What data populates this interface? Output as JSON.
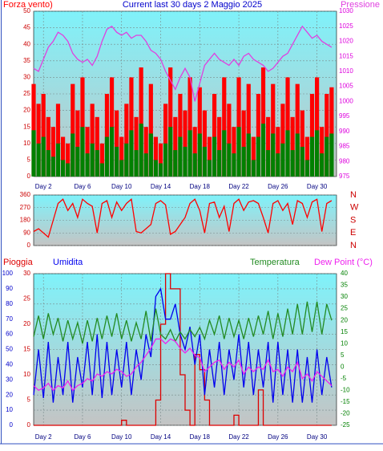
{
  "chart_data": [
    {
      "type": "bar-line",
      "title": "Current last 30 days 2 Maggio 2025",
      "x": [
        1,
        1.5,
        2,
        2.5,
        3,
        3.5,
        4,
        4.5,
        5,
        5.5,
        6,
        6.5,
        7,
        7.5,
        8,
        8.5,
        9,
        9.5,
        10,
        10.5,
        11,
        11.5,
        12,
        12.5,
        13,
        13.5,
        14,
        14.5,
        15,
        15.5,
        16,
        16.5,
        17,
        17.5,
        18,
        18.5,
        19,
        19.5,
        20,
        20.5,
        21,
        21.5,
        22,
        22.5,
        23,
        23.5,
        24,
        24.5,
        25,
        25.5,
        26,
        26.5,
        27,
        27.5,
        28,
        28.5,
        29,
        29.5,
        30,
        30.5,
        31,
        31.5
      ],
      "xlim": [
        1,
        32
      ],
      "xticks": [
        {
          "value": 2,
          "label": "Day 2"
        },
        {
          "value": 6,
          "label": "Day 6"
        },
        {
          "value": 10,
          "label": "Day 10"
        },
        {
          "value": 14,
          "label": "Day 14"
        },
        {
          "value": 18,
          "label": "Day 18"
        },
        {
          "value": 22,
          "label": "Day 22"
        },
        {
          "value": 26,
          "label": "Day 26"
        },
        {
          "value": 30,
          "label": "Day 30"
        }
      ],
      "ylim": [
        0,
        50
      ],
      "yticks": [
        0,
        5,
        10,
        15,
        20,
        25,
        30,
        35,
        40,
        45,
        50
      ],
      "y2lim": [
        975,
        1030
      ],
      "y2ticks": [
        975,
        980,
        985,
        990,
        995,
        1000,
        1005,
        1010,
        1015,
        1020,
        1025,
        1030
      ],
      "grid": true,
      "series": [
        {
          "name": "Forza vento)",
          "color": "#ff0000",
          "mark": "bar",
          "axis": "y",
          "values": [
            28,
            22,
            25,
            18,
            15,
            22,
            12,
            10,
            28,
            20,
            30,
            15,
            22,
            18,
            10,
            25,
            30,
            20,
            12,
            22,
            30,
            18,
            33,
            15,
            28,
            12,
            10,
            22,
            33,
            18,
            25,
            20,
            30,
            15,
            27,
            20,
            12,
            25,
            18,
            30,
            22,
            15,
            30,
            20,
            28,
            12,
            25,
            33,
            18,
            28,
            15,
            22,
            30,
            18,
            28,
            20,
            12,
            25,
            30,
            15,
            25,
            27
          ]
        },
        {
          "color": "#008000",
          "mark": "bar",
          "axis": "y",
          "values": [
            14,
            10,
            12,
            8,
            6,
            10,
            5,
            4,
            13,
            9,
            15,
            7,
            10,
            8,
            4,
            12,
            15,
            9,
            5,
            10,
            14,
            8,
            16,
            7,
            13,
            5,
            4,
            10,
            15,
            8,
            12,
            9,
            14,
            7,
            13,
            9,
            5,
            12,
            8,
            14,
            10,
            7,
            15,
            9,
            13,
            5,
            12,
            16,
            8,
            13,
            7,
            10,
            14,
            8,
            13,
            9,
            5,
            12,
            14,
            7,
            12,
            13
          ]
        },
        {
          "name": "Pressione",
          "color": "#e040e0",
          "mark": "line",
          "axis": "y2",
          "values": [
            1011,
            1010,
            1014,
            1018,
            1020,
            1023,
            1022,
            1020,
            1016,
            1014,
            1013,
            1014,
            1012,
            1015,
            1020,
            1024,
            1025,
            1023,
            1022,
            1023,
            1021,
            1022,
            1022,
            1020,
            1017,
            1016,
            1014,
            1010,
            1007,
            1004,
            1008,
            1011,
            1008,
            1000,
            1006,
            1012,
            1014,
            1016,
            1014,
            1013,
            1012,
            1014,
            1012,
            1015,
            1016,
            1014,
            1013,
            1012,
            1010,
            1011,
            1013,
            1015,
            1016,
            1019,
            1022,
            1025,
            1023,
            1021,
            1022,
            1020,
            1019,
            1018
          ]
        }
      ]
    },
    {
      "type": "line",
      "x": [
        1,
        1.5,
        2,
        2.5,
        3,
        3.5,
        4,
        4.5,
        5,
        5.5,
        6,
        6.5,
        7,
        7.5,
        8,
        8.5,
        9,
        9.5,
        10,
        10.5,
        11,
        11.5,
        12,
        12.5,
        13,
        13.5,
        14,
        14.5,
        15,
        15.5,
        16,
        16.5,
        17,
        17.5,
        18,
        18.5,
        19,
        19.5,
        20,
        20.5,
        21,
        21.5,
        22,
        22.5,
        23,
        23.5,
        24,
        24.5,
        25,
        25.5,
        26,
        26.5,
        27,
        27.5,
        28,
        28.5,
        29,
        29.5,
        30,
        30.5,
        31,
        31.5
      ],
      "xlim": [
        1,
        32
      ],
      "ylim": [
        0,
        360
      ],
      "yticks": [
        0,
        90,
        180,
        270,
        360
      ],
      "y2lim": [
        0,
        360
      ],
      "y2ticks": [
        {
          "value": 360,
          "label": "N"
        },
        {
          "value": 270,
          "label": "W"
        },
        {
          "value": 180,
          "label": "S"
        },
        {
          "value": 90,
          "label": "E"
        },
        {
          "value": 0,
          "label": "N"
        }
      ],
      "grid": true,
      "series": [
        {
          "color": "#ff0000",
          "mark": "line",
          "axis": "y",
          "values": [
            100,
            120,
            90,
            60,
            180,
            300,
            330,
            250,
            300,
            200,
            330,
            300,
            280,
            90,
            300,
            320,
            200,
            310,
            250,
            300,
            330,
            100,
            90,
            120,
            150,
            300,
            320,
            290,
            80,
            100,
            150,
            200,
            300,
            330,
            250,
            90,
            300,
            310,
            200,
            280,
            100,
            300,
            330,
            250,
            310,
            320,
            300,
            200,
            90,
            300,
            320,
            250,
            300,
            150,
            320,
            300,
            200,
            310,
            330,
            100,
            300,
            320
          ]
        }
      ]
    },
    {
      "type": "line",
      "x": [
        1,
        1.5,
        2,
        2.5,
        3,
        3.5,
        4,
        4.5,
        5,
        5.5,
        6,
        6.5,
        7,
        7.5,
        8,
        8.5,
        9,
        9.5,
        10,
        10.5,
        11,
        11.5,
        12,
        12.5,
        13,
        13.5,
        14,
        14.5,
        15,
        15.5,
        16,
        16.5,
        17,
        17.5,
        18,
        18.5,
        19,
        19.5,
        20,
        20.5,
        21,
        21.5,
        22,
        22.5,
        23,
        23.5,
        24,
        24.5,
        25,
        25.5,
        26,
        26.5,
        27,
        27.5,
        28,
        28.5,
        29,
        29.5,
        30,
        30.5,
        31,
        31.5
      ],
      "xlim": [
        1,
        32
      ],
      "xticks": [
        {
          "value": 2,
          "label": "Day 2"
        },
        {
          "value": 6,
          "label": "Day 6"
        },
        {
          "value": 10,
          "label": "Day 10"
        },
        {
          "value": 14,
          "label": "Day 14"
        },
        {
          "value": 18,
          "label": "Day 18"
        },
        {
          "value": 22,
          "label": "Day 22"
        },
        {
          "value": 26,
          "label": "Day 26"
        },
        {
          "value": 30,
          "label": "Day 30"
        }
      ],
      "ylim": [
        0,
        100
      ],
      "yticks": [
        0,
        10,
        20,
        30,
        40,
        50,
        60,
        70,
        80,
        90,
        100
      ],
      "y3lim": [
        0,
        30
      ],
      "y3ticks": [
        0,
        5,
        10,
        15,
        20,
        25,
        30
      ],
      "y2lim": [
        -25,
        40
      ],
      "y2ticks": [
        -25,
        -20,
        -15,
        -10,
        -5,
        0,
        5,
        10,
        15,
        20,
        25,
        30,
        35,
        40
      ],
      "grid": true,
      "series": [
        {
          "name": "Pioggia",
          "color": "#dd0000",
          "mark": "step",
          "axis": "y3",
          "values": [
            0,
            0,
            0,
            0,
            0,
            0,
            0,
            0,
            0,
            0,
            0,
            0,
            0,
            0,
            0,
            0,
            0,
            0,
            1,
            0,
            0,
            0,
            0,
            0,
            0,
            5,
            20,
            30,
            27,
            27,
            10,
            3,
            0,
            14,
            11,
            5,
            0,
            0,
            0,
            0,
            0,
            2,
            0,
            0,
            0,
            0,
            7,
            0,
            0,
            0,
            0,
            0,
            0,
            0,
            0,
            0,
            0,
            0,
            0,
            0,
            0,
            0
          ]
        },
        {
          "name": "Umidita",
          "color": "#0000ee",
          "mark": "line",
          "axis": "y",
          "values": [
            20,
            50,
            18,
            55,
            15,
            45,
            20,
            55,
            15,
            45,
            25,
            55,
            20,
            60,
            18,
            55,
            20,
            50,
            25,
            55,
            20,
            50,
            30,
            60,
            45,
            85,
            90,
            70,
            70,
            80,
            60,
            50,
            65,
            40,
            60,
            20,
            50,
            25,
            55,
            20,
            50,
            30,
            60,
            25,
            55,
            20,
            50,
            25,
            55,
            15,
            55,
            20,
            50,
            15,
            50,
            15,
            45,
            15,
            50,
            20,
            45,
            25
          ]
        },
        {
          "name": "Temperatura",
          "color": "#228b22",
          "mark": "line",
          "axis": "y2",
          "values": [
            13,
            22,
            12,
            23,
            14,
            21,
            11,
            20,
            12,
            19,
            10,
            20,
            11,
            21,
            12,
            22,
            13,
            23,
            12,
            20,
            11,
            19,
            12,
            24,
            11,
            25,
            14,
            12,
            16,
            11,
            15,
            12,
            16,
            13,
            17,
            12,
            20,
            14,
            22,
            12,
            21,
            13,
            20,
            12,
            21,
            13,
            22,
            14,
            24,
            12,
            23,
            13,
            25,
            14,
            27,
            14,
            28,
            15,
            28,
            14,
            27,
            20
          ]
        },
        {
          "name": "Dew Point (°C)",
          "color": "#ee22ee",
          "mark": "line",
          "axis": "y2",
          "values": [
            -8,
            -10,
            -9,
            -7,
            -10,
            -8,
            -9,
            -6,
            -10,
            -8,
            -7,
            -5,
            -6,
            -3,
            -4,
            -2,
            -3,
            -1,
            -2,
            -4,
            -3,
            0,
            2,
            5,
            8,
            12,
            12,
            10,
            12,
            11,
            8,
            6,
            8,
            5,
            4,
            -2,
            0,
            2,
            3,
            -1,
            2,
            0,
            3,
            -3,
            0,
            -2,
            0,
            -1,
            3,
            -2,
            -1,
            -4,
            0,
            -2,
            2,
            -5,
            -3,
            -6,
            -2,
            -4,
            -6,
            -8
          ]
        }
      ]
    }
  ]
}
